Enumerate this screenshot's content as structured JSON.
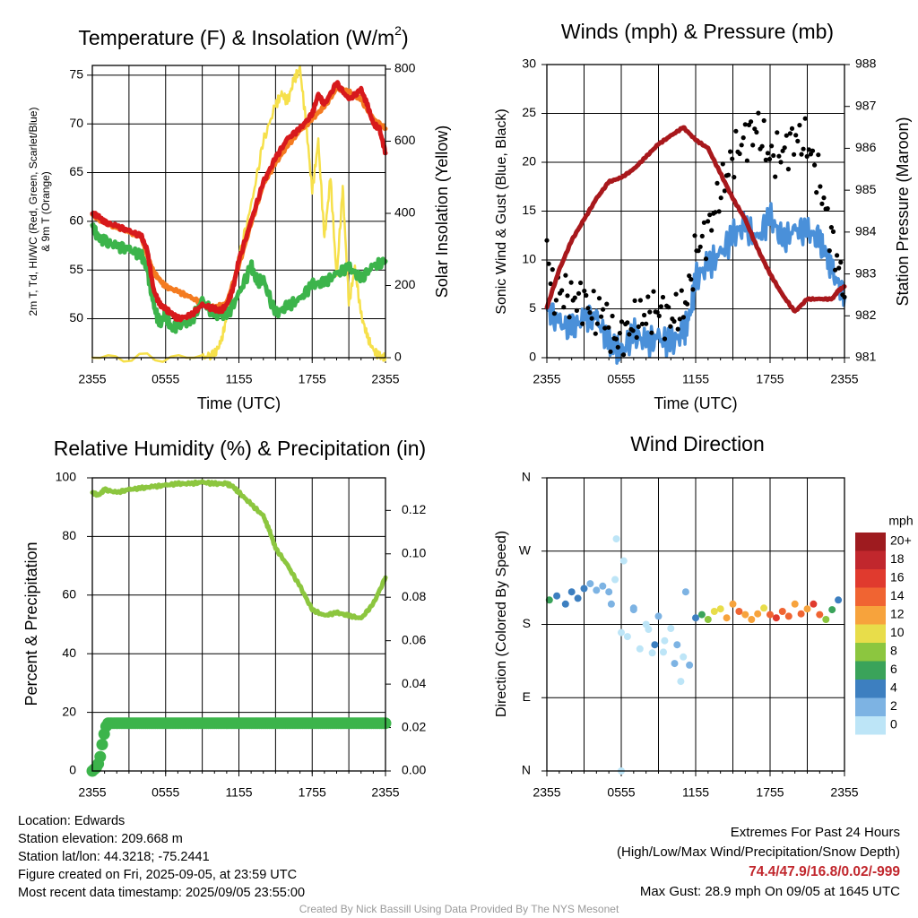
{
  "chart_data": [
    {
      "type": "line",
      "title": "Temperature (F) & Insolation (W/m²)",
      "xlabel": "Time (UTC)",
      "ylabel": "2m T, Td, HI/WC (Red, Green, Scarlet/Blue) & 9m T (Orange)",
      "y2label": "Solar Insolation (Yellow)",
      "x_ticks": [
        "2355",
        "0555",
        "1155",
        "1755",
        "2355"
      ],
      "ylim": [
        46,
        76
      ],
      "y_ticks": [
        50,
        55,
        60,
        65,
        70,
        75
      ],
      "y2lim": [
        0,
        810
      ],
      "y2_ticks": [
        0,
        200,
        400,
        600,
        800
      ],
      "grid": true,
      "series": [
        {
          "name": "2m T (Red)",
          "color": "#d7191c",
          "x": [
            0,
            0.5,
            1,
            2,
            3,
            4,
            4.5,
            5,
            5.5,
            6,
            6.5,
            7,
            8,
            9,
            10,
            10.5,
            11,
            11.5,
            12,
            13,
            14,
            15,
            16,
            17,
            18,
            18.5,
            19,
            20,
            21,
            22,
            22.5,
            23,
            23.5,
            24
          ],
          "values": [
            60.8,
            60.5,
            59.9,
            59.5,
            59,
            58.5,
            57,
            53,
            51.5,
            51,
            50.5,
            50,
            50.3,
            51.4,
            51,
            50.8,
            51.4,
            53,
            56,
            60,
            64,
            66.5,
            68.5,
            69.5,
            71,
            73,
            72,
            74.2,
            72.5,
            73.5,
            72,
            70,
            69.5,
            67
          ]
        },
        {
          "name": "9m T (Orange)",
          "color": "#f47b20",
          "x": [
            0,
            1,
            2,
            3,
            4,
            4.5,
            5,
            5.5,
            6,
            7,
            8,
            9,
            10,
            11,
            12,
            13,
            14,
            15,
            16,
            17,
            18,
            19,
            20,
            21,
            22,
            23,
            24
          ],
          "values": [
            60.7,
            59.8,
            59.4,
            58.9,
            58.4,
            56.5,
            54.8,
            54,
            53.3,
            52.8,
            52.2,
            51.6,
            51.1,
            51.6,
            55.5,
            59.8,
            63.8,
            66,
            67.8,
            69.3,
            70.5,
            71.8,
            73.6,
            73.3,
            72.5,
            70.5,
            69.5
          ]
        },
        {
          "name": "2m Td (Green)",
          "color": "#3cb44b",
          "x": [
            0,
            0.5,
            1,
            2,
            3,
            4,
            4.5,
            5,
            5.5,
            6,
            6.5,
            7,
            8,
            9,
            10,
            11,
            12,
            13,
            13.5,
            14,
            15,
            16,
            17,
            18,
            19,
            20,
            21,
            22,
            23,
            24
          ],
          "values": [
            59.6,
            58.2,
            58,
            57.4,
            57.1,
            56.5,
            55.1,
            51.5,
            49.5,
            50.5,
            48.8,
            49.5,
            49.6,
            51.8,
            50.5,
            50.3,
            52.5,
            55.4,
            53.8,
            54,
            50.5,
            51.3,
            52,
            53.5,
            53.7,
            54.6,
            55.3,
            54.1,
            55.4,
            55.9
          ]
        },
        {
          "name": "Solar Insolation (Yellow)",
          "color": "#f6e04b",
          "axis": "right",
          "x": [
            0,
            9,
            10,
            10.5,
            11,
            11.5,
            12,
            13,
            14,
            15,
            15.5,
            16,
            16.5,
            17,
            17.5,
            18,
            18.5,
            19,
            19.5,
            20,
            20.5,
            21,
            21.5,
            22,
            22.5,
            23,
            23.5,
            24
          ],
          "values": [
            0,
            0,
            10,
            40,
            110,
            190,
            280,
            420,
            600,
            700,
            730,
            710,
            770,
            800,
            650,
            460,
            600,
            330,
            500,
            220,
            470,
            150,
            250,
            120,
            60,
            20,
            5,
            0
          ]
        }
      ]
    },
    {
      "type": "line",
      "title": "Winds (mph) & Pressure (mb)",
      "xlabel": "Time (UTC)",
      "ylabel": "Sonic Wind & Gust (Blue, Black)",
      "y2label": "Station Pressure (Maroon)",
      "x_ticks": [
        "2355",
        "0555",
        "1155",
        "1755",
        "2355"
      ],
      "ylim": [
        0,
        30
      ],
      "y_ticks": [
        0,
        5,
        10,
        15,
        20,
        25,
        30
      ],
      "y2lim": [
        981,
        988
      ],
      "y2_ticks": [
        981,
        982,
        983,
        984,
        985,
        986,
        987,
        988
      ],
      "grid": true,
      "series": [
        {
          "name": "Sonic Wind (Blue)",
          "color": "#4a90d9",
          "x": [
            0,
            1,
            2,
            3,
            4,
            5,
            5.5,
            6,
            7,
            8,
            9,
            10,
            11,
            11.5,
            12,
            13,
            14,
            15,
            16,
            17,
            18,
            19,
            20,
            21,
            22,
            22.5,
            23,
            24
          ],
          "values": [
            5,
            3.5,
            3,
            4,
            4,
            1.5,
            1,
            0.5,
            2.5,
            1.5,
            2,
            1.5,
            2.5,
            4,
            8,
            9.5,
            10.5,
            12.5,
            13.5,
            12,
            14.5,
            12,
            13,
            13,
            12,
            10.5,
            9,
            6
          ]
        },
        {
          "name": "Gust (Black)",
          "color": "#000000",
          "x": [
            0,
            0.5,
            1,
            2,
            3,
            4,
            4.5,
            5,
            5.5,
            6,
            7,
            8,
            9,
            10,
            11,
            11.5,
            12,
            13,
            14,
            15,
            16,
            17,
            18,
            19,
            20,
            21,
            22,
            23,
            24
          ],
          "values": [
            12,
            6,
            7,
            6,
            6,
            4,
            5,
            3,
            2,
            2,
            3.5,
            4.5,
            5,
            4,
            5,
            7,
            11,
            13,
            17,
            20.5,
            22.5,
            23.5,
            20.5,
            21,
            22.5,
            22,
            18,
            12,
            7
          ]
        },
        {
          "name": "Station Pressure (Maroon)",
          "color": "#a8181c",
          "axis": "right",
          "x": [
            0,
            1,
            2,
            3,
            4,
            5,
            6,
            7,
            8,
            9,
            10,
            11,
            12,
            13,
            14,
            15,
            16,
            17,
            18,
            19,
            20,
            21,
            22,
            23,
            23.5,
            24
          ],
          "values": [
            982.2,
            983.1,
            983.8,
            984.3,
            984.8,
            985.2,
            985.3,
            985.5,
            985.8,
            986.1,
            986.3,
            986.5,
            986.2,
            986,
            985.4,
            984.8,
            984.3,
            983.6,
            983,
            982.5,
            982.1,
            982.4,
            982.4,
            982.4,
            982.6,
            982.7
          ]
        }
      ]
    },
    {
      "type": "line",
      "title": "Relative Humidity (%) & Precipitation (in)",
      "ylabel": "Percent & Precipitation",
      "x_ticks": [
        "2355",
        "0555",
        "1155",
        "1755",
        "2355"
      ],
      "ylim": [
        0,
        100
      ],
      "y_ticks": [
        0,
        20,
        40,
        60,
        80,
        100
      ],
      "y2lim": [
        0,
        0.135
      ],
      "y2_ticks": [
        "0.00",
        "0.02",
        "0.04",
        "0.06",
        "0.08",
        "0.10",
        "0.12"
      ],
      "grid": true,
      "series": [
        {
          "name": "Relative Humidity",
          "color": "#8cc63f",
          "x": [
            0,
            0.5,
            1,
            2,
            3,
            4,
            5,
            6,
            7,
            8,
            9,
            10,
            11,
            11.5,
            12,
            13,
            14,
            14.5,
            15,
            16,
            17,
            18,
            19,
            20,
            21,
            22,
            23,
            24
          ],
          "values": [
            95,
            94,
            96,
            95,
            96,
            96.5,
            97,
            97.5,
            98,
            98,
            98.5,
            98,
            98,
            97,
            95,
            91,
            87,
            82,
            76,
            70,
            63,
            55,
            53,
            54,
            53,
            52,
            57,
            66
          ]
        },
        {
          "name": "Precipitation",
          "color": "#3cb44b",
          "axis": "right",
          "x": [
            0,
            0.4,
            0.6,
            0.8,
            1,
            1.2,
            2,
            4,
            8,
            12,
            16,
            20,
            24
          ],
          "values": [
            0,
            0.002,
            0.005,
            0.012,
            0.018,
            0.022,
            0.022,
            0.022,
            0.022,
            0.022,
            0.022,
            0.022,
            0.022
          ]
        }
      ]
    },
    {
      "type": "scatter",
      "title": "Wind Direction",
      "ylabel": "Direction (Colored By Speed)",
      "x_ticks": [
        "2355",
        "0555",
        "1155",
        "1755",
        "2355"
      ],
      "y_tick_labels": [
        "N",
        "E",
        "S",
        "W",
        "N"
      ],
      "ylim": [
        0,
        360
      ],
      "colorbar": {
        "title": "mph",
        "labels": [
          "20+",
          "18",
          "16",
          "14",
          "12",
          "10",
          "8",
          "6",
          "4",
          "2",
          "0"
        ],
        "colors": [
          "#9e1b1f",
          "#c1272d",
          "#e03a2e",
          "#f06432",
          "#f7a33c",
          "#e8dd4a",
          "#8cc63f",
          "#3aa35a",
          "#3d7fc0",
          "#7db3e3",
          "#bde5f7"
        ]
      },
      "series": [
        {
          "name": "Direction",
          "x": [
            0.2,
            0.8,
            1.5,
            2,
            2.5,
            3,
            3.5,
            4,
            4.5,
            5,
            5.5,
            6,
            6.5,
            7,
            7.5,
            8,
            8.5,
            9,
            9.5,
            10,
            10.5,
            11,
            11.5,
            12,
            12.5,
            13,
            13.5,
            14,
            14.5,
            15,
            15.5,
            16,
            16.5,
            17,
            17.5,
            18,
            18.5,
            19,
            19.5,
            20,
            20.5,
            21,
            21.5,
            22,
            22.5,
            23,
            23.5,
            5.2,
            6.2,
            8.2,
            9.4,
            10.8,
            5.6,
            6,
            7,
            8.7,
            10.3,
            11.2
          ],
          "values": [
            210,
            215,
            205,
            220,
            212,
            224,
            230,
            222,
            227,
            220,
            235,
            170,
            165,
            200,
            150,
            180,
            145,
            190,
            160,
            175,
            155,
            140,
            130,
            188,
            192,
            186,
            196,
            199,
            188,
            205,
            196,
            192,
            186,
            193,
            200,
            192,
            188,
            196,
            190,
            205,
            193,
            199,
            205,
            192,
            186,
            198,
            210,
            205,
            258,
            174,
            146,
            110,
            285,
            0,
            198,
            155,
            132,
            220
          ],
          "speeds": [
            6,
            5,
            5,
            4,
            4,
            4,
            3,
            3,
            3,
            2,
            1,
            1,
            1,
            2,
            1,
            1,
            1,
            2,
            1,
            1,
            2,
            1,
            2,
            4,
            6,
            9,
            10,
            11,
            12,
            13,
            14,
            12,
            13,
            12,
            11,
            14,
            16,
            15,
            14,
            13,
            15,
            12,
            17,
            14,
            9,
            6,
            5,
            2,
            1,
            1,
            1,
            1,
            1,
            1,
            3,
            4,
            2,
            3
          ]
        }
      ]
    }
  ],
  "footer": {
    "location": "Location: Edwards",
    "elevation": "Station elevation: 209.668 m",
    "latlon": "Station lat/lon: 44.3218; -75.2441",
    "created": "Figure created on Fri, 2025-09-05, at 23:59 UTC",
    "recent": "Most recent data timestamp: 2025/09/05 23:55:00",
    "extremes_title": "Extremes For Past 24 Hours",
    "extremes_subtitle": "(High/Low/Max Wind/Precipitation/Snow Depth)",
    "extremes_values": "74.4/47.9/16.8/0.02/-999",
    "max_gust": "Max Gust: 28.9 mph On 09/05 at 1645 UTC",
    "credit": "Created By Nick Bassill Using Data Provided By The NYS Mesonet"
  }
}
